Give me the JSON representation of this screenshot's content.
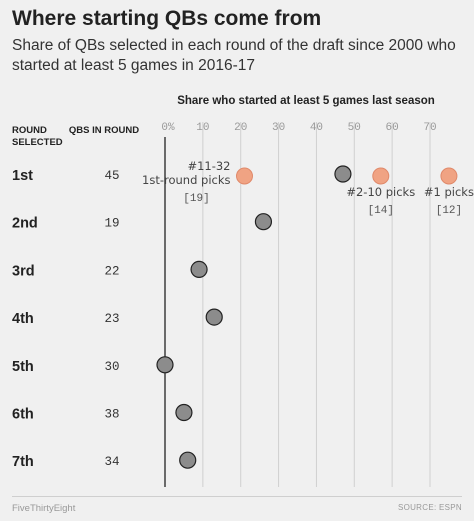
{
  "title": "Where starting QBs come from",
  "subtitle": "Share of QBs selected in each round of the draft since 2000 who started at least 5 games in 2016-17",
  "footer": {
    "brand": "FiveThirtyEight",
    "source": "SOURCE: ESPN"
  },
  "colors": {
    "background": "#f0f0f0",
    "dot_gray": "#8c8c8c",
    "dot_orange": "#f0a383",
    "axis_line": "#222222",
    "grid_line": "#d0d0d0"
  },
  "chart_data": {
    "type": "scatter",
    "title": "Share who started at least 5 games last season",
    "column_headers": {
      "round": "ROUND SELECTED",
      "count": "QBS IN ROUND"
    },
    "xlim": [
      0,
      75
    ],
    "ticks": [
      0,
      10,
      20,
      30,
      40,
      50,
      60,
      70
    ],
    "tick_labels": [
      "0%",
      "10",
      "20",
      "30",
      "40",
      "50",
      "60",
      "70"
    ],
    "grid": true,
    "rows": [
      {
        "round": "1st",
        "count": "45",
        "value": 47
      },
      {
        "round": "2nd",
        "count": "19",
        "value": 26
      },
      {
        "round": "3rd",
        "count": "22",
        "value": 9
      },
      {
        "round": "4th",
        "count": "23",
        "value": 13
      },
      {
        "round": "5th",
        "count": "30",
        "value": 0
      },
      {
        "round": "6th",
        "count": "38",
        "value": 5
      },
      {
        "round": "7th",
        "count": "34",
        "value": 6
      }
    ],
    "subgroups": [
      {
        "row": "1st",
        "label": "#11-32 1st-round picks",
        "count": "[19]",
        "value": 21
      },
      {
        "row": "1st",
        "label": "#2-10 picks",
        "count": "[14]",
        "value": 57
      },
      {
        "row": "1st",
        "label": "#1 picks",
        "count": "[12]",
        "value": 75
      }
    ]
  }
}
